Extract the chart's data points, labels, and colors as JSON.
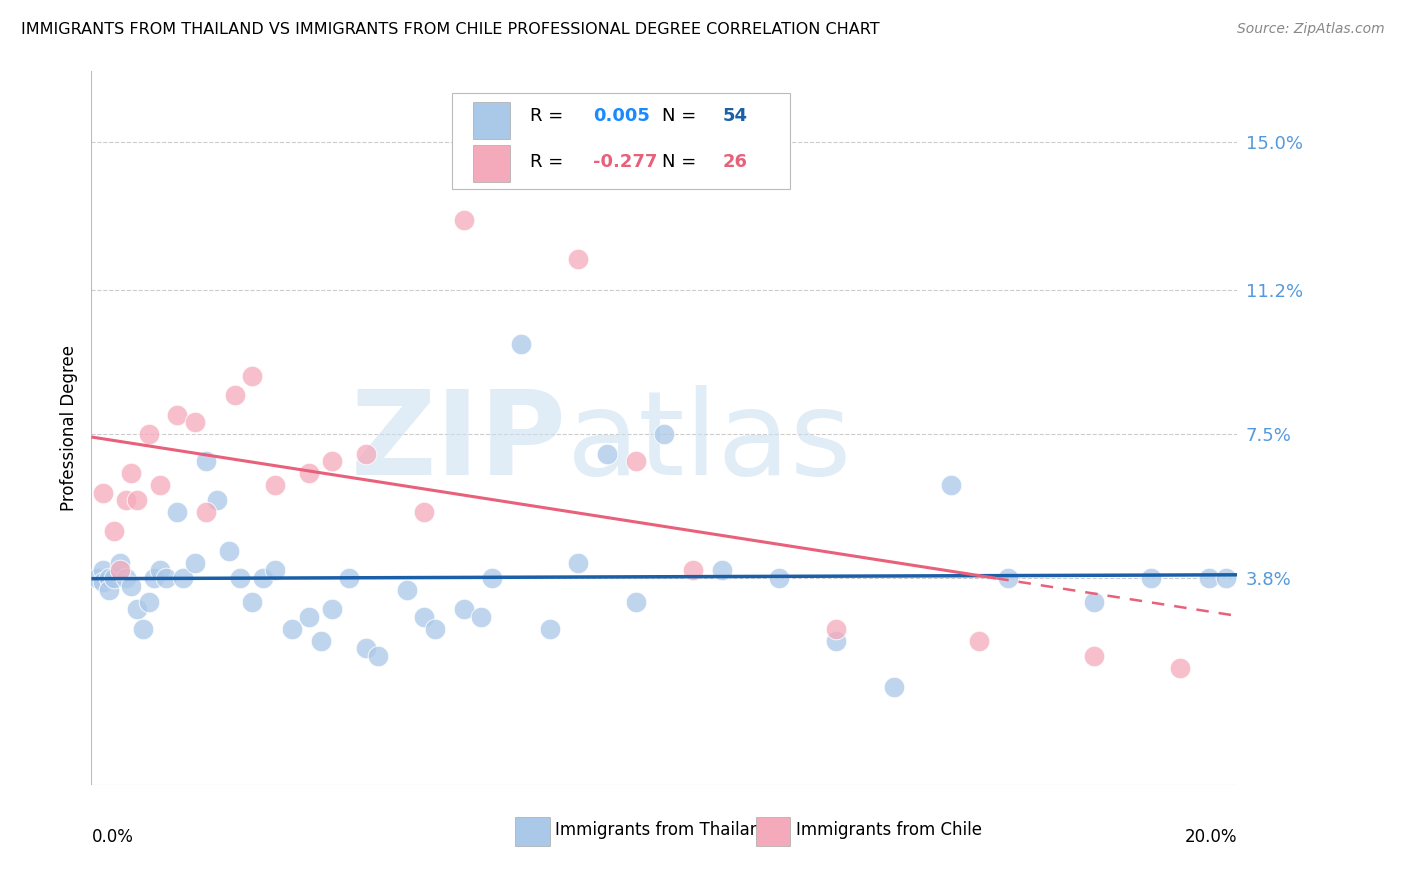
{
  "title": "IMMIGRANTS FROM THAILAND VS IMMIGRANTS FROM CHILE PROFESSIONAL DEGREE CORRELATION CHART",
  "source": "Source: ZipAtlas.com",
  "ylabel": "Professional Degree",
  "xlim": [
    0.0,
    0.2
  ],
  "ylim": [
    -0.015,
    0.168
  ],
  "yticks": [
    0.0,
    0.038,
    0.075,
    0.112,
    0.15
  ],
  "ytick_labels": [
    "",
    "3.8%",
    "7.5%",
    "11.2%",
    "15.0%"
  ],
  "background_color": "#ffffff",
  "grid_color": "#cccccc",
  "thailand_scatter_color": "#aac8e8",
  "chile_scatter_color": "#f5aabb",
  "thailand_line_color": "#1a5fa8",
  "chile_line_color": "#e8607a",
  "r_thailand_text": "0.005",
  "n_thailand_text": "54",
  "r_chile_text": "-0.277",
  "n_chile_text": "26",
  "r_val_color_thailand": "#1a8aff",
  "n_val_color_thailand": "#1a5fa8",
  "r_val_color_chile": "#e8607a",
  "n_val_color_chile": "#e8607a",
  "thailand_x": [
    0.001,
    0.002,
    0.002,
    0.003,
    0.003,
    0.004,
    0.005,
    0.006,
    0.007,
    0.008,
    0.009,
    0.01,
    0.011,
    0.012,
    0.013,
    0.015,
    0.016,
    0.018,
    0.02,
    0.022,
    0.024,
    0.026,
    0.028,
    0.03,
    0.032,
    0.035,
    0.038,
    0.04,
    0.042,
    0.045,
    0.048,
    0.05,
    0.055,
    0.058,
    0.06,
    0.065,
    0.068,
    0.07,
    0.075,
    0.08,
    0.085,
    0.09,
    0.095,
    0.1,
    0.11,
    0.12,
    0.13,
    0.14,
    0.15,
    0.16,
    0.175,
    0.185,
    0.195,
    0.198
  ],
  "thailand_y": [
    0.038,
    0.04,
    0.037,
    0.038,
    0.035,
    0.038,
    0.042,
    0.038,
    0.036,
    0.03,
    0.025,
    0.032,
    0.038,
    0.04,
    0.038,
    0.055,
    0.038,
    0.042,
    0.068,
    0.058,
    0.045,
    0.038,
    0.032,
    0.038,
    0.04,
    0.025,
    0.028,
    0.022,
    0.03,
    0.038,
    0.02,
    0.018,
    0.035,
    0.028,
    0.025,
    0.03,
    0.028,
    0.038,
    0.098,
    0.025,
    0.042,
    0.07,
    0.032,
    0.075,
    0.04,
    0.038,
    0.022,
    0.01,
    0.062,
    0.038,
    0.032,
    0.038,
    0.038,
    0.038
  ],
  "chile_x": [
    0.002,
    0.004,
    0.005,
    0.006,
    0.007,
    0.008,
    0.01,
    0.012,
    0.015,
    0.018,
    0.02,
    0.025,
    0.028,
    0.032,
    0.038,
    0.042,
    0.048,
    0.058,
    0.065,
    0.085,
    0.095,
    0.105,
    0.13,
    0.155,
    0.175,
    0.19
  ],
  "chile_y": [
    0.06,
    0.05,
    0.04,
    0.058,
    0.065,
    0.058,
    0.075,
    0.062,
    0.08,
    0.078,
    0.055,
    0.085,
    0.09,
    0.062,
    0.065,
    0.068,
    0.07,
    0.055,
    0.13,
    0.12,
    0.068,
    0.04,
    0.025,
    0.022,
    0.018,
    0.015
  ]
}
